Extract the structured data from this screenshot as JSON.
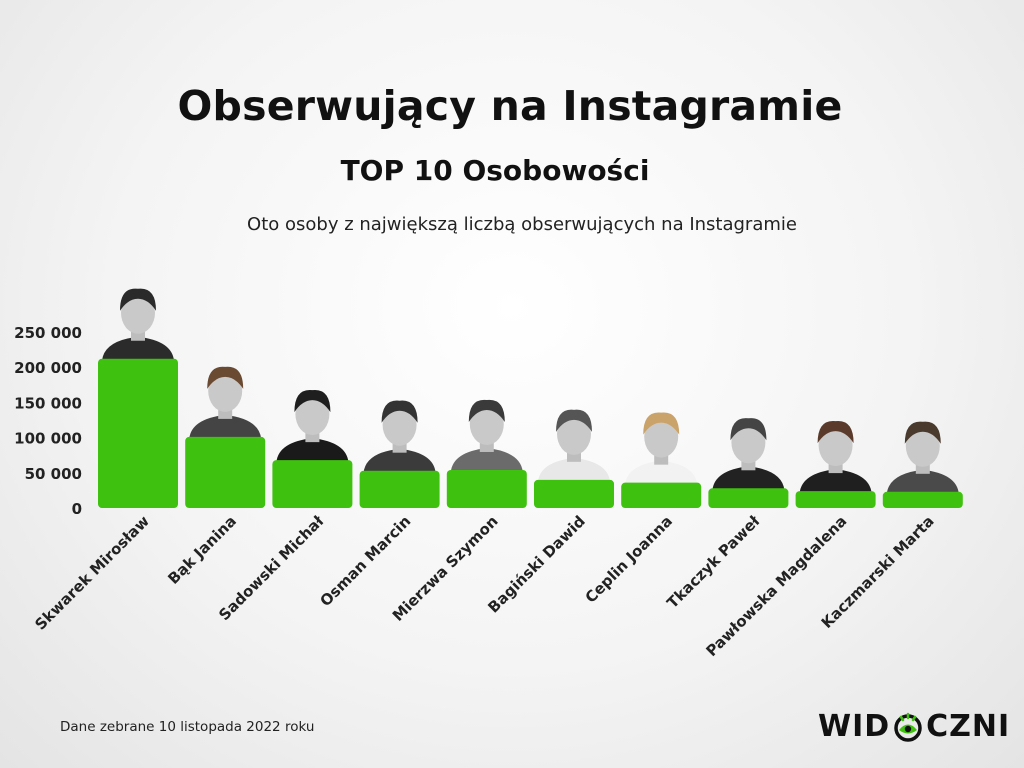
{
  "header": {
    "title": "Obserwujący na Instagramie",
    "subtitle": "TOP 10 Osobowości",
    "description": "Oto osoby z największą liczbą obserwujących na Instagramie"
  },
  "chart_data": {
    "type": "bar",
    "title": "Obserwujący na Instagramie",
    "categories": [
      "Skwarek Mirosław",
      "Bąk Janina",
      "Sadowski Michał",
      "Osman Marcin",
      "Mierzwa Szymon",
      "Bagiński Dawid",
      "Ceplin Joanna",
      "Tkaczyk Paweł",
      "Pawłowska Magdalena",
      "Kaczmarski Marta"
    ],
    "values": [
      212000,
      101000,
      68000,
      53000,
      54000,
      40000,
      36000,
      28000,
      24000,
      23000
    ],
    "yticks": [
      "0",
      "50 000",
      "100 000",
      "150 000",
      "200 000",
      "250 000"
    ],
    "ytick_values": [
      0,
      50000,
      100000,
      150000,
      200000,
      250000
    ],
    "ylim": [
      0,
      250000
    ],
    "xlabel": "",
    "ylabel": "",
    "grid": false,
    "bar_color": "#3fc10f",
    "bar_icons": "portrait-photo"
  },
  "footer": {
    "note": "Dane zebrane 10 listopada 2022 roku",
    "logo_left": "WID",
    "logo_right": "CZNI",
    "logo_icon": "eye-icon",
    "logo_color": "#3fc10f"
  }
}
